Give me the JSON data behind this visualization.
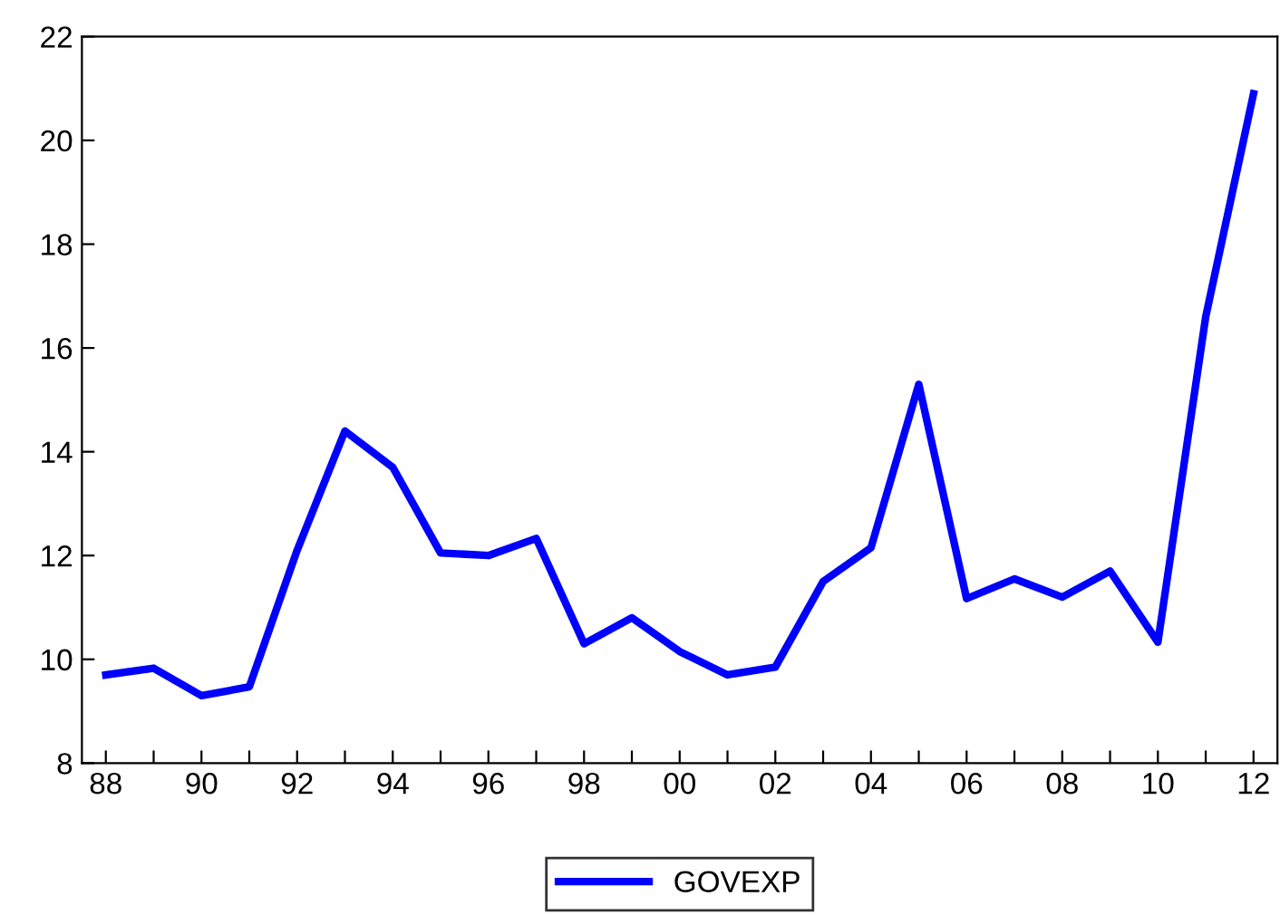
{
  "chart_data": {
    "type": "line",
    "x": [
      1988,
      1989,
      1990,
      1991,
      1992,
      1993,
      1994,
      1995,
      1996,
      1997,
      1998,
      1999,
      2000,
      2001,
      2002,
      2003,
      2004,
      2005,
      2006,
      2007,
      2008,
      2009,
      2010,
      2011,
      2012
    ],
    "series": [
      {
        "name": "GOVEXP",
        "color": "#0000ff",
        "values": [
          9.7,
          9.83,
          9.3,
          9.47,
          12.1,
          14.4,
          13.7,
          12.05,
          12.0,
          12.33,
          10.3,
          10.8,
          10.15,
          9.7,
          9.85,
          11.5,
          12.15,
          15.3,
          11.17,
          11.55,
          11.2,
          11.7,
          10.33,
          16.6,
          20.9
        ]
      }
    ],
    "xlim": [
      1987.5,
      2012.5
    ],
    "xticks": [
      {
        "value": 1988,
        "label": "88"
      },
      {
        "value": 1989,
        "label": null
      },
      {
        "value": 1990,
        "label": "90"
      },
      {
        "value": 1991,
        "label": null
      },
      {
        "value": 1992,
        "label": "92"
      },
      {
        "value": 1993,
        "label": null
      },
      {
        "value": 1994,
        "label": "94"
      },
      {
        "value": 1995,
        "label": null
      },
      {
        "value": 1996,
        "label": "96"
      },
      {
        "value": 1997,
        "label": null
      },
      {
        "value": 1998,
        "label": "98"
      },
      {
        "value": 1999,
        "label": null
      },
      {
        "value": 2000,
        "label": "00"
      },
      {
        "value": 2001,
        "label": null
      },
      {
        "value": 2002,
        "label": "02"
      },
      {
        "value": 2003,
        "label": null
      },
      {
        "value": 2004,
        "label": "04"
      },
      {
        "value": 2005,
        "label": null
      },
      {
        "value": 2006,
        "label": "06"
      },
      {
        "value": 2007,
        "label": null
      },
      {
        "value": 2008,
        "label": "08"
      },
      {
        "value": 2009,
        "label": null
      },
      {
        "value": 2010,
        "label": "10"
      },
      {
        "value": 2011,
        "label": null
      },
      {
        "value": 2012,
        "label": "12"
      }
    ],
    "ylim": [
      8,
      22
    ],
    "yticks": [
      8,
      10,
      12,
      14,
      16,
      18,
      20,
      22
    ],
    "grid": false,
    "legend": "bottom",
    "line_style": "solid",
    "marker": "none"
  }
}
